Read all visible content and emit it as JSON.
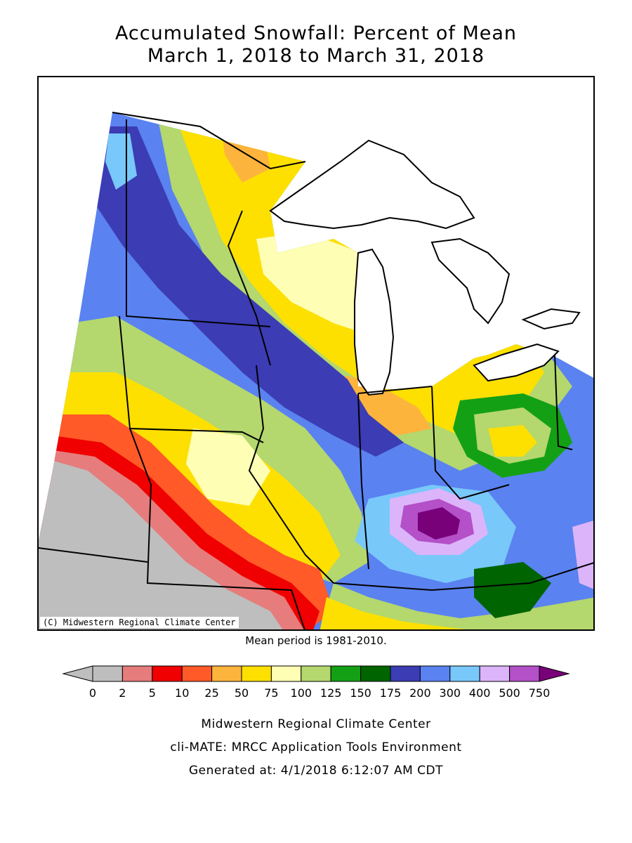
{
  "title": {
    "line1": "Accumulated Snowfall: Percent of Mean",
    "line2": "March 1, 2018 to March 31, 2018"
  },
  "map": {
    "copyright": "(C) Midwestern Regional Climate Center",
    "mean_period": "Mean period is 1981-2010.",
    "colors": {
      "below_2": "#bebebe",
      "2_5": "#e67c7c",
      "5_10": "#f00000",
      "10_25": "#ff5a28",
      "25_50": "#fdb43c",
      "50_75": "#fde000",
      "75_100": "#fefeb4",
      "100_125": "#b4d76e",
      "125_150": "#14a014",
      "150_175": "#006400",
      "175_200": "#3c3cb4",
      "200_300": "#5a82f0",
      "300_400": "#78c8fa",
      "400_500": "#dcb4fa",
      "500_750": "#b450c8",
      "above_750": "#780078"
    }
  },
  "legend": {
    "tick_labels": [
      "0",
      "2",
      "5",
      "10",
      "25",
      "50",
      "75",
      "100",
      "125",
      "150",
      "175",
      "200",
      "300",
      "400",
      "500",
      "750"
    ],
    "colors": [
      "#bebebe",
      "#bebebe",
      "#e67c7c",
      "#f00000",
      "#ff5a28",
      "#fdb43c",
      "#fde000",
      "#fefeb4",
      "#b4d76e",
      "#14a014",
      "#006400",
      "#3c3cb4",
      "#5a82f0",
      "#78c8fa",
      "#dcb4fa",
      "#b450c8",
      "#780078"
    ]
  },
  "footer": {
    "line1": "Midwestern Regional Climate Center",
    "line2": "cli-MATE: MRCC Application Tools Environment",
    "line3": "Generated at: 4/1/2018 6:12:07 AM CDT"
  }
}
